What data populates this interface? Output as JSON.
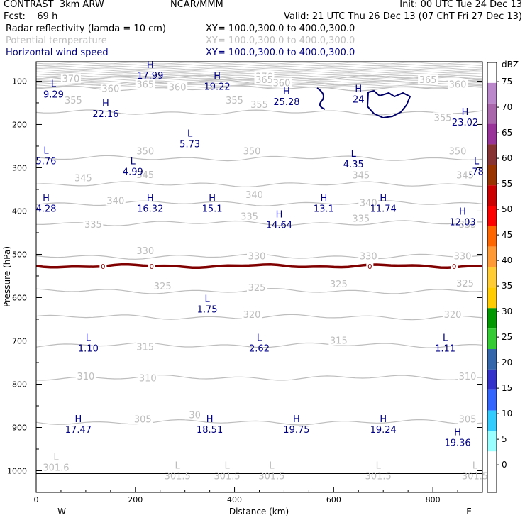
{
  "header": {
    "model": "CONTRAST  3km ARW",
    "center": "NCAR/MMM",
    "init": "Init: 00 UTC Tue 24 Dec 13",
    "fcst": "Fcst:    69 h",
    "valid": "Valid: 21 UTC Thu 26 Dec 13 (07 ChT Fri 27 Dec 13)",
    "fields": [
      {
        "name": "Radar reflectivity (lamda = 10 cm)",
        "xy": "XY= 100.0,300.0 to 400.0,300.0",
        "color": "#000000"
      },
      {
        "name": "Potential temperature",
        "xy": "XY= 100.0,300.0 to 400.0,300.0",
        "color": "#bdbdbd"
      },
      {
        "name": "Horizontal wind speed",
        "xy": "XY= 100.0,300.0 to 400.0,300.0",
        "color": "#000080"
      }
    ]
  },
  "chart_data": {
    "type": "cross-section contour",
    "xlabel": "Distance (km)",
    "ylabel": "Pressure (hPa)",
    "xlim": [
      0,
      900
    ],
    "ylim": [
      1050,
      55
    ],
    "x_ticks": [
      0,
      200,
      400,
      600,
      800
    ],
    "y_ticks": [
      100,
      200,
      300,
      400,
      500,
      600,
      700,
      800,
      900,
      1000
    ],
    "x_end_labels": {
      "left": "W",
      "right": "E"
    },
    "theta_contours": [
      {
        "value": 305,
        "p": 888
      },
      {
        "value": 310,
        "p": 785
      },
      {
        "value": 315,
        "p": 710
      },
      {
        "value": 320,
        "p": 645
      },
      {
        "value": 325,
        "p": 585
      },
      {
        "value": 330,
        "p": 505
      },
      {
        "value": 335,
        "p": 428
      },
      {
        "value": 340,
        "p": 382
      },
      {
        "value": 345,
        "p": 338
      },
      {
        "value": 350,
        "p": 278
      },
      {
        "value": 355,
        "p": 172
      },
      {
        "value": 360,
        "p": 116
      },
      {
        "value": 365,
        "p": 103
      },
      {
        "value": 370,
        "p": 92
      }
    ],
    "theta_labels": [
      {
        "value": "370",
        "x": 70,
        "p": 95
      },
      {
        "value": "370",
        "x": 460,
        "p": 90
      },
      {
        "value": "365",
        "x": 220,
        "p": 108
      },
      {
        "value": "365",
        "x": 460,
        "p": 98
      },
      {
        "value": "365",
        "x": 790,
        "p": 98
      },
      {
        "value": "360",
        "x": 150,
        "p": 118
      },
      {
        "value": "360",
        "x": 285,
        "p": 115
      },
      {
        "value": "360",
        "x": 495,
        "p": 105
      },
      {
        "value": "360",
        "x": 850,
        "p": 108
      },
      {
        "value": "355",
        "x": 75,
        "p": 145
      },
      {
        "value": "355",
        "x": 400,
        "p": 145
      },
      {
        "value": "355",
        "x": 450,
        "p": 155
      },
      {
        "value": "355",
        "x": 820,
        "p": 185
      },
      {
        "value": "350",
        "x": 220,
        "p": 262
      },
      {
        "value": "350",
        "x": 435,
        "p": 262
      },
      {
        "value": "350",
        "x": 850,
        "p": 262
      },
      {
        "value": "345",
        "x": 95,
        "p": 325
      },
      {
        "value": "345",
        "x": 220,
        "p": 317
      },
      {
        "value": "345",
        "x": 655,
        "p": 318
      },
      {
        "value": "345",
        "x": 865,
        "p": 318
      },
      {
        "value": "340",
        "x": 160,
        "p": 377
      },
      {
        "value": "340",
        "x": 440,
        "p": 363
      },
      {
        "value": "340",
        "x": 670,
        "p": 382
      },
      {
        "value": "335",
        "x": 115,
        "p": 432
      },
      {
        "value": "335",
        "x": 430,
        "p": 413
      },
      {
        "value": "335",
        "x": 655,
        "p": 418
      },
      {
        "value": "335",
        "x": 870,
        "p": 432
      },
      {
        "value": "330",
        "x": 220,
        "p": 493
      },
      {
        "value": "330",
        "x": 445,
        "p": 505
      },
      {
        "value": "330",
        "x": 670,
        "p": 505
      },
      {
        "value": "330",
        "x": 860,
        "p": 505
      },
      {
        "value": "325",
        "x": 255,
        "p": 575
      },
      {
        "value": "325",
        "x": 445,
        "p": 578
      },
      {
        "value": "325",
        "x": 610,
        "p": 570
      },
      {
        "value": "325",
        "x": 865,
        "p": 568
      },
      {
        "value": "320",
        "x": 435,
        "p": 640
      },
      {
        "value": "320",
        "x": 840,
        "p": 640
      },
      {
        "value": "315",
        "x": 220,
        "p": 715
      },
      {
        "value": "315",
        "x": 610,
        "p": 700
      },
      {
        "value": "310",
        "x": 100,
        "p": 783
      },
      {
        "value": "310",
        "x": 225,
        "p": 787
      },
      {
        "value": "310",
        "x": 870,
        "p": 783
      },
      {
        "value": "305",
        "x": 215,
        "p": 882
      },
      {
        "value": "305",
        "x": 870,
        "p": 882
      },
      {
        "value": "30",
        "x": 320,
        "p": 872
      }
    ],
    "dbz_contour_label": "0",
    "dbz_contour_p": 527,
    "dbz_zero_labels_x": [
      135,
      233,
      673,
      843
    ],
    "wind_extrema": [
      {
        "type": "H",
        "value": "17.99",
        "x": 230,
        "p": 70
      },
      {
        "type": "L",
        "value": "9.29",
        "x": 35,
        "p": 113
      },
      {
        "type": "H",
        "value": "19.22",
        "x": 365,
        "p": 95
      },
      {
        "type": "H",
        "value": "25.28",
        "x": 505,
        "p": 130
      },
      {
        "type": "H",
        "value": "24",
        "x": 650,
        "p": 125
      },
      {
        "type": "H",
        "value": "22.16",
        "x": 140,
        "p": 158
      },
      {
        "type": "H",
        "value": "23.02",
        "x": 865,
        "p": 178
      },
      {
        "type": "L",
        "value": "5.73",
        "x": 310,
        "p": 228
      },
      {
        "type": "L",
        "value": "5.76",
        "x": 20,
        "p": 267
      },
      {
        "type": "L",
        "value": "4.99",
        "x": 195,
        "p": 292
      },
      {
        "type": "L",
        "value": "4.35",
        "x": 640,
        "p": 275
      },
      {
        "type": "L",
        "value": ".78",
        "x": 888,
        "p": 292
      },
      {
        "type": "H",
        "value": "4.28",
        "x": 20,
        "p": 377
      },
      {
        "type": "H",
        "value": "16.32",
        "x": 230,
        "p": 377
      },
      {
        "type": "H",
        "value": "15.1",
        "x": 355,
        "p": 377
      },
      {
        "type": "H",
        "value": "14.64",
        "x": 490,
        "p": 415
      },
      {
        "type": "H",
        "value": "13.1",
        "x": 580,
        "p": 377
      },
      {
        "type": "H",
        "value": "11.74",
        "x": 700,
        "p": 377
      },
      {
        "type": "H",
        "value": "12.03",
        "x": 860,
        "p": 408
      },
      {
        "type": "L",
        "value": "1.75",
        "x": 345,
        "p": 610
      },
      {
        "type": "L",
        "value": "1.10",
        "x": 105,
        "p": 700
      },
      {
        "type": "L",
        "value": "2.62",
        "x": 450,
        "p": 700
      },
      {
        "type": "L",
        "value": "1.11",
        "x": 825,
        "p": 700
      },
      {
        "type": "H",
        "value": "17.47",
        "x": 85,
        "p": 888
      },
      {
        "type": "H",
        "value": "18.51",
        "x": 350,
        "p": 888
      },
      {
        "type": "H",
        "value": "19.75",
        "x": 525,
        "p": 888
      },
      {
        "type": "H",
        "value": "19.24",
        "x": 700,
        "p": 888
      },
      {
        "type": "H",
        "value": "19.36",
        "x": 850,
        "p": 918
      }
    ],
    "theta_minima": [
      {
        "value": "301.6",
        "x": 40,
        "p": 985
      },
      {
        "value": "301.5",
        "x": 285,
        "p": 1005
      },
      {
        "value": "301.5",
        "x": 385,
        "p": 1005
      },
      {
        "value": "301.5",
        "x": 475,
        "p": 1005
      },
      {
        "value": "301.5",
        "x": 690,
        "p": 1005
      },
      {
        "value": "301.5",
        "x": 885,
        "p": 1005
      }
    ],
    "colorbar": {
      "title": "dBZ",
      "labels": [
        "0",
        "5",
        "10",
        "15",
        "20",
        "25",
        "30",
        "35",
        "40",
        "45",
        "50",
        "55",
        "60",
        "65",
        "70",
        "75"
      ],
      "colors": [
        "#ffffff",
        "#ffffff",
        "#99ffff",
        "#33ccff",
        "#3366ff",
        "#3333cc",
        "#3366aa",
        "#33cc33",
        "#009900",
        "#ffcc00",
        "#ffcc33",
        "#ff9933",
        "#ff6600",
        "#ff0000",
        "#cc0000",
        "#993300",
        "#883333",
        "#993399",
        "#aa66aa",
        "#bb88cc",
        "#ffffff"
      ]
    }
  }
}
